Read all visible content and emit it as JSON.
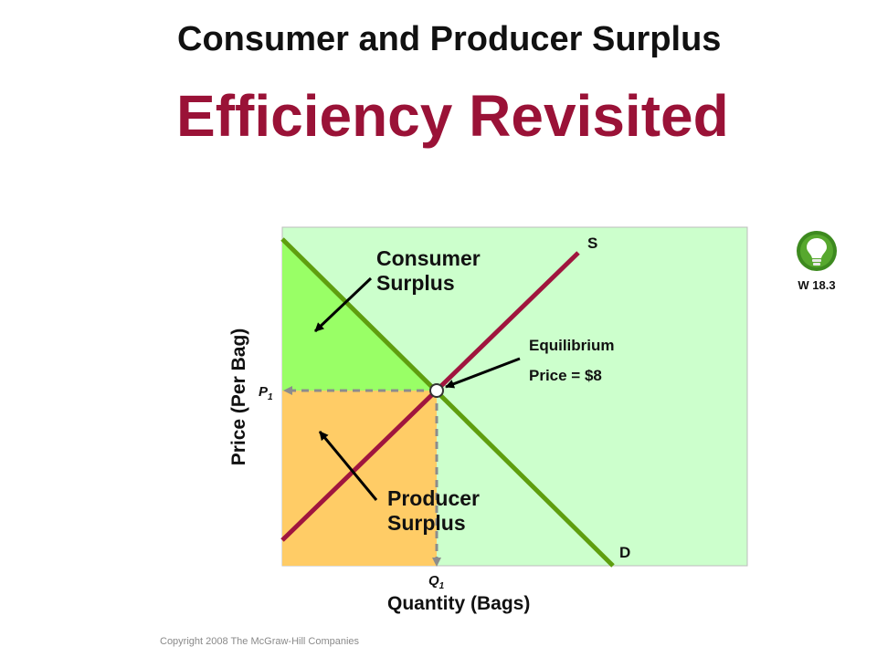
{
  "title": "Consumer and Producer Surplus",
  "subtitle": "Efficiency Revisited",
  "copyright": "Copyright 2008 The McGraw-Hill Companies",
  "badge": {
    "label": "W 18.3",
    "icon": "lightbulb-icon"
  },
  "axes": {
    "y_label": "Price  (Per Bag)",
    "x_label": "Quantity (Bags)"
  },
  "labels": {
    "supply": "S",
    "demand": "D",
    "price_tick": "P",
    "price_tick_sub": "1",
    "quantity_tick": "Q",
    "quantity_tick_sub": "1",
    "consumer_surplus_line1": "Consumer",
    "consumer_surplus_line2": "Surplus",
    "producer_surplus_line1": "Producer",
    "producer_surplus_line2": "Surplus",
    "equilibrium_line1": "Equilibrium",
    "equilibrium_line2": "Price = $8"
  },
  "colors": {
    "plot_background": "#ccffcc",
    "consumer_surplus": "#99ff66",
    "producer_surplus": "#ffcc66",
    "supply_line": "#a0153e",
    "demand_line": "#5f9e0f",
    "dashed": "#8c8c8c",
    "title_accent": "#9a1237"
  }
}
